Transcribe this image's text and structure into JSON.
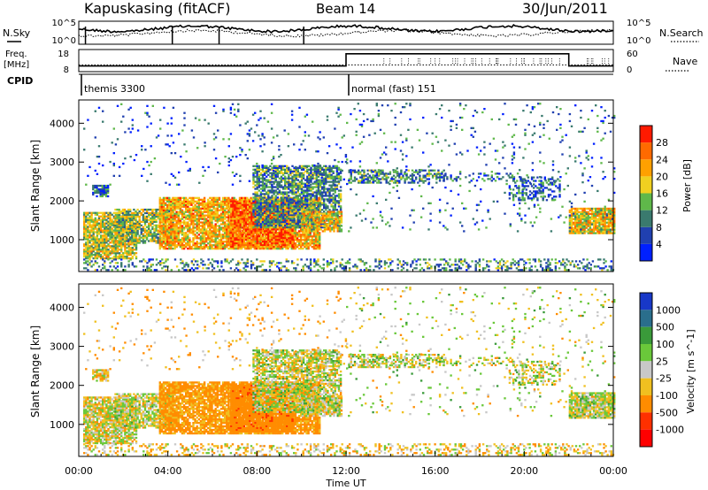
{
  "chart_data": {
    "type": "heatmap",
    "header": {
      "station": "Kapuskasing (fitACF)",
      "beam": "Beam 14",
      "date": "30/Jun/2011"
    },
    "time_axis": {
      "ticks": [
        "00:00",
        "04:00",
        "08:00",
        "12:00",
        "16:00",
        "20:00",
        "00:00"
      ],
      "tick_hours": [
        0,
        4,
        8,
        12,
        16,
        20,
        24
      ],
      "xlabel": "Time UT",
      "range_hours": [
        0,
        24
      ]
    },
    "noise_panel": {
      "left_label": "N.Sky",
      "right_label": "N.Search",
      "ticks_left": [
        "10^5",
        "10^0"
      ],
      "ticks_right": [
        "10^5",
        "10^0"
      ],
      "ylim_log10": [
        0,
        5
      ]
    },
    "freq_panel": {
      "left_label_1": "Freq.",
      "left_label_2": "[MHz]",
      "right_label": "Nave",
      "ticks_left": [
        "18",
        "8"
      ],
      "ticks_right": [
        "60",
        "0"
      ],
      "freq_mhz": 10.9,
      "nave_segments": [
        {
          "start_h": 0,
          "end_h": 12,
          "nave": 14
        },
        {
          "start_h": 12,
          "end_h": 22,
          "nave": 50
        },
        {
          "start_h": 22,
          "end_h": 24,
          "nave": 14
        }
      ]
    },
    "cpid_panel": {
      "label": "CPID",
      "modes": [
        {
          "name": "themis 3300",
          "start_h": 0,
          "end_h": 12
        },
        {
          "name": "normal (fast) 151",
          "start_h": 12,
          "end_h": 24
        }
      ]
    },
    "range_axis": {
      "ylabel": "Slant Range [km]",
      "ticks": [
        1000,
        2000,
        3000,
        4000
      ],
      "ylim": [
        180,
        4600
      ]
    },
    "power_panel": {
      "colorbar_label": "Power [dB]",
      "colorbar_ticks": [
        "4",
        "8",
        "12",
        "16",
        "20",
        "24",
        "28"
      ],
      "colorbar_range": [
        0,
        30
      ],
      "colors": [
        "#0020ff",
        "#2040b0",
        "#3a7a6e",
        "#5fb84a",
        "#f0d020",
        "#ffa000",
        "#ff6a00",
        "#ff1a00"
      ]
    },
    "velocity_panel": {
      "colorbar_label": "Velocity [m s^-1]",
      "colorbar_ticks": [
        "1000",
        "500",
        "100",
        "25",
        "-25",
        "-100",
        "-500",
        "-1000"
      ],
      "colors": [
        "#1838c8",
        "#2a6e8c",
        "#3a9a3a",
        "#6ac83a",
        "#c8c8c8",
        "#f0c020",
        "#ff8c00",
        "#ff3000",
        "#ff0000"
      ]
    },
    "echo_regions": [
      {
        "t0": 0.2,
        "t1": 2.6,
        "r0": 500,
        "r1": 1700,
        "density": 0.85,
        "power": 16,
        "vel": -25
      },
      {
        "t0": 1.6,
        "t1": 4.2,
        "r0": 900,
        "r1": 1800,
        "density": 0.75,
        "power": 14,
        "vel": 0
      },
      {
        "t0": 3.6,
        "t1": 10.8,
        "r0": 750,
        "r1": 2100,
        "density": 0.85,
        "power": 20,
        "vel": -150
      },
      {
        "t0": 6.8,
        "t1": 9.6,
        "r0": 800,
        "r1": 2000,
        "density": 0.9,
        "power": 24,
        "vel": -400
      },
      {
        "t0": 7.8,
        "t1": 11.8,
        "r0": 1300,
        "r1": 2900,
        "density": 0.7,
        "power": 10,
        "vel": 0
      },
      {
        "t0": 10.0,
        "t1": 11.8,
        "r0": 1200,
        "r1": 1700,
        "density": 0.8,
        "power": 18,
        "vel": 0
      },
      {
        "t0": 0.6,
        "t1": 1.3,
        "r0": 2100,
        "r1": 2400,
        "density": 0.8,
        "power": 8,
        "vel": -50
      },
      {
        "t0": 12.1,
        "t1": 16.4,
        "r0": 2450,
        "r1": 2800,
        "density": 0.55,
        "power": 10,
        "vel": 0
      },
      {
        "t0": 16.0,
        "t1": 19.8,
        "r0": 2500,
        "r1": 2700,
        "density": 0.25,
        "power": 8,
        "vel": 0
      },
      {
        "t0": 19.3,
        "t1": 21.6,
        "r0": 2000,
        "r1": 2600,
        "density": 0.4,
        "power": 8,
        "vel": 0
      },
      {
        "t0": 22.0,
        "t1": 24.0,
        "r0": 1150,
        "r1": 1800,
        "density": 0.9,
        "power": 18,
        "vel": 0
      },
      {
        "t0": 0.2,
        "t1": 24.0,
        "r0": 200,
        "r1": 500,
        "density": 0.3,
        "power": 10,
        "vel": -50
      },
      {
        "t0": 0.2,
        "t1": 12.0,
        "r0": 2400,
        "r1": 4500,
        "density": 0.04,
        "power": 6,
        "vel": -100
      },
      {
        "t0": 12.0,
        "t1": 24.0,
        "r0": 1200,
        "r1": 4500,
        "density": 0.04,
        "power": 8,
        "vel": 0
      }
    ]
  }
}
